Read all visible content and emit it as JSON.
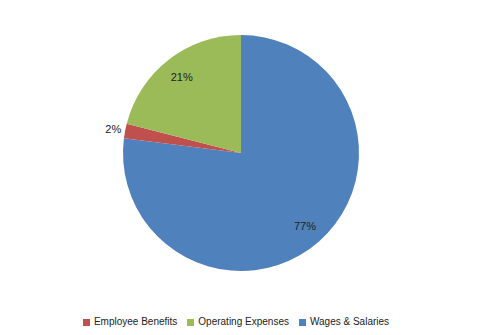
{
  "chart_data": {
    "type": "pie",
    "categories": [
      "Wages & Salaries",
      "Employee Benefits",
      "Operating Expenses"
    ],
    "values": [
      77,
      2,
      21
    ],
    "value_labels": [
      "77%",
      "2%",
      "21%"
    ],
    "colors": [
      "#4f81bd",
      "#c0504d",
      "#9bbb59"
    ],
    "data_labels": true,
    "legend": "bottom"
  }
}
